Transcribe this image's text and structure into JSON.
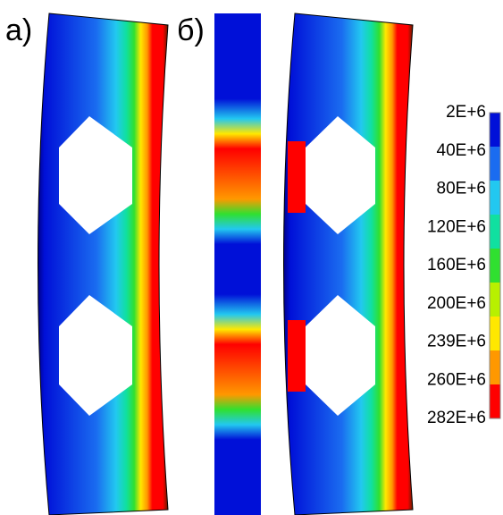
{
  "panels": [
    {
      "label": "а)"
    },
    {
      "label": "б)"
    }
  ],
  "legend": {
    "labels": [
      "2E+6",
      "40E+6",
      "80E+6",
      "120E+6",
      "160E+6",
      "200E+6",
      "239E+6",
      "260E+6",
      "282E+6"
    ],
    "colors": [
      "#0010d8",
      "#1a6cf0",
      "#22c8f0",
      "#10e0a0",
      "#30e030",
      "#b8f000",
      "#ffe800",
      "#ff9800",
      "#ff0000"
    ]
  }
}
